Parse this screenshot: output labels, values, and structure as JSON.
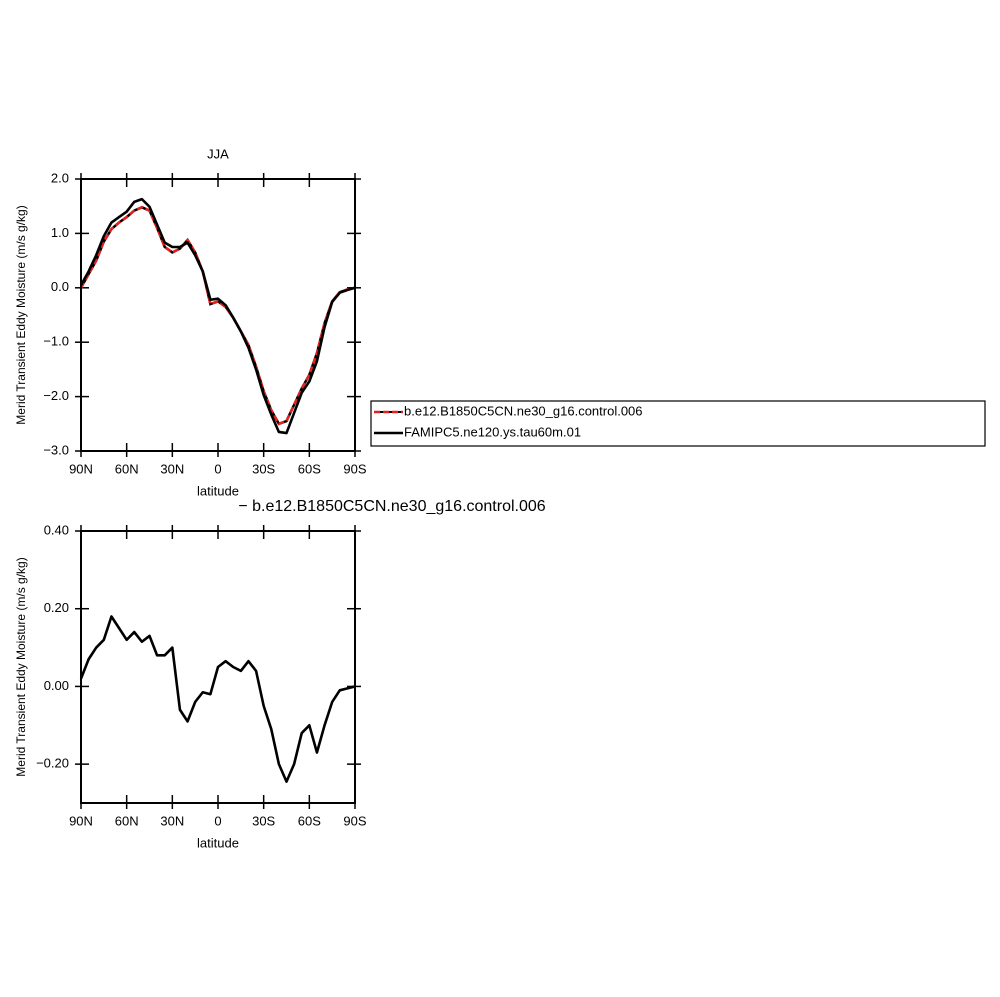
{
  "chart_data": [
    {
      "type": "line",
      "title": "JJA",
      "ylabel": "Merid Transient Eddy Moisture (m/s g/kg)",
      "xlabel": "latitude",
      "x": [
        90,
        85,
        80,
        75,
        70,
        65,
        60,
        55,
        50,
        45,
        40,
        35,
        30,
        25,
        20,
        15,
        10,
        5,
        0,
        -5,
        -10,
        -15,
        -20,
        -25,
        -30,
        -35,
        -40,
        -45,
        -50,
        -55,
        -60,
        -65,
        -70,
        -75,
        -80,
        -85,
        -90
      ],
      "xlim": [
        90,
        -90
      ],
      "xticks": [
        {
          "value": 90,
          "label": "90N"
        },
        {
          "value": 60,
          "label": "60N"
        },
        {
          "value": 30,
          "label": "30N"
        },
        0,
        {
          "value": -30,
          "label": "30S"
        },
        {
          "value": -60,
          "label": "60S"
        },
        {
          "value": -90,
          "label": "90S"
        }
      ],
      "ylim": [
        -3,
        2
      ],
      "yticks": [
        {
          "value": -3,
          "label": "−3.0"
        },
        {
          "value": -2,
          "label": "−2.0"
        },
        {
          "value": -1,
          "label": "−1.0"
        },
        {
          "value": 0,
          "label": "0.0"
        },
        {
          "value": 1,
          "label": "1.0"
        },
        {
          "value": 2,
          "label": "2.0"
        }
      ],
      "legend": "right",
      "series": [
        {
          "name": "b.e12.B1850C5CN.ne30_g16.control.006",
          "color": "#e8201c",
          "dash": true,
          "values": [
            0,
            0.25,
            0.5,
            0.85,
            1.08,
            1.2,
            1.3,
            1.42,
            1.48,
            1.42,
            1.1,
            0.75,
            0.65,
            0.72,
            0.88,
            0.65,
            0.3,
            -0.3,
            -0.25,
            -0.35,
            -0.55,
            -0.8,
            -1.05,
            -1.45,
            -1.9,
            -2.25,
            -2.5,
            -2.45,
            -2.15,
            -1.85,
            -1.6,
            -1.2,
            -0.65,
            -0.25,
            -0.08,
            -0.03,
            0
          ]
        },
        {
          "name": "FAMIPC5.ne120.ys.tau60m.01",
          "color": "#000000",
          "dash": false,
          "values": [
            0.05,
            0.3,
            0.6,
            0.95,
            1.2,
            1.3,
            1.4,
            1.58,
            1.63,
            1.49,
            1.16,
            0.83,
            0.75,
            0.75,
            0.83,
            0.6,
            0.3,
            -0.22,
            -0.2,
            -0.32,
            -0.55,
            -0.8,
            -1.1,
            -1.5,
            -1.97,
            -2.33,
            -2.65,
            -2.67,
            -2.3,
            -1.93,
            -1.72,
            -1.35,
            -0.72,
            -0.26,
            -0.09,
            -0.04,
            0
          ]
        }
      ]
    },
    {
      "type": "line",
      "title": "− b.e12.B1850C5CN.ne30_g16.control.006",
      "ylabel": "Merid Transient Eddy Moisture (m/s g/kg)",
      "xlabel": "latitude",
      "x": [
        90,
        85,
        80,
        75,
        70,
        65,
        60,
        55,
        50,
        45,
        40,
        35,
        30,
        25,
        20,
        15,
        10,
        5,
        0,
        -5,
        -10,
        -15,
        -20,
        -25,
        -30,
        -35,
        -40,
        -45,
        -50,
        -55,
        -60,
        -65,
        -70,
        -75,
        -80,
        -85,
        -90
      ],
      "xlim": [
        90,
        -90
      ],
      "xticks": [
        {
          "value": 90,
          "label": "90N"
        },
        {
          "value": 60,
          "label": "60N"
        },
        {
          "value": 30,
          "label": "30N"
        },
        0,
        {
          "value": -30,
          "label": "30S"
        },
        {
          "value": -60,
          "label": "60S"
        },
        {
          "value": -90,
          "label": "90S"
        }
      ],
      "ylim": [
        -0.3,
        0.4
      ],
      "yticks": [
        {
          "value": -0.2,
          "label": "−0.20"
        },
        {
          "value": 0,
          "label": "0.00"
        },
        {
          "value": 0.2,
          "label": "0.20"
        },
        {
          "value": 0.4,
          "label": "0.40"
        }
      ],
      "color": "#000000",
      "values": [
        0.02,
        0.07,
        0.1,
        0.12,
        0.18,
        0.15,
        0.12,
        0.14,
        0.115,
        0.13,
        0.08,
        0.08,
        0.1,
        -0.06,
        -0.09,
        -0.04,
        -0.015,
        -0.02,
        0.05,
        0.065,
        0.05,
        0.04,
        0.065,
        0.04,
        -0.05,
        -0.11,
        -0.2,
        -0.245,
        -0.2,
        -0.12,
        -0.1,
        -0.17,
        -0.1,
        -0.04,
        -0.01,
        -0.005,
        0
      ]
    }
  ]
}
